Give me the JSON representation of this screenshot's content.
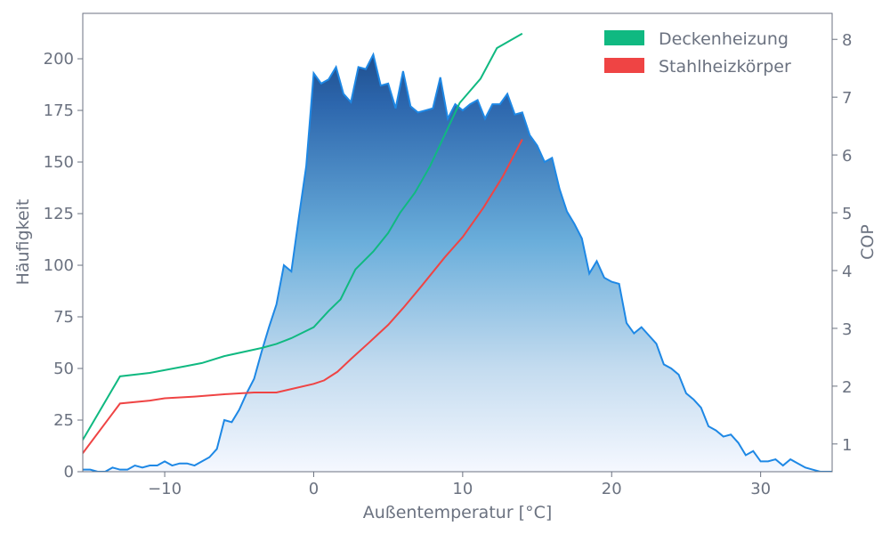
{
  "chart_data": {
    "type": "area",
    "title": "",
    "xlabel": "Außentemperatur [°C]",
    "ylabel": "Häufigkeit",
    "y2label": "COP",
    "xlim": [
      -15.5,
      34.8
    ],
    "ylim": [
      0,
      222
    ],
    "y2lim": [
      0.52,
      8.45
    ],
    "x_ticks": [
      -10,
      0,
      10,
      20,
      30
    ],
    "x_tick_labels": [
      "−10",
      "0",
      "10",
      "20",
      "30"
    ],
    "y_ticks": [
      0,
      25,
      50,
      75,
      100,
      125,
      150,
      175,
      200
    ],
    "y_tick_labels": [
      "0",
      "25",
      "50",
      "75",
      "100",
      "125",
      "150",
      "175",
      "200"
    ],
    "y2_ticks": [
      1,
      2,
      3,
      4,
      5,
      6,
      7,
      8
    ],
    "y2_tick_labels": [
      "1",
      "2",
      "3",
      "4",
      "5",
      "6",
      "7",
      "8"
    ],
    "grid": false,
    "legend_position": "top-right",
    "frequency": {
      "color_line": "#1e88e5",
      "color_top": "#1f4e8c",
      "color_bottom": "#f5f8ff",
      "x": [
        -15.5,
        -15,
        -14.5,
        -14,
        -13.5,
        -13,
        -12.5,
        -12,
        -11.5,
        -11,
        -10.5,
        -10,
        -9.5,
        -9,
        -8.5,
        -8,
        -7.5,
        -7,
        -6.5,
        -6,
        -5.5,
        -5,
        -4.5,
        -4,
        -3.5,
        -3,
        -2.5,
        -2,
        -1.5,
        -1,
        -0.5,
        0,
        0.5,
        1,
        1.5,
        2,
        2.5,
        3,
        3.5,
        4,
        4.5,
        5,
        5.5,
        6,
        6.5,
        7,
        7.5,
        8,
        8.5,
        9,
        9.5,
        10,
        10.5,
        11,
        11.5,
        12,
        12.5,
        13,
        13.5,
        14,
        14.5,
        15,
        15.5,
        16,
        16.5,
        17,
        17.5,
        18,
        18.5,
        19,
        19.5,
        20,
        20.5,
        21,
        21.5,
        22,
        22.5,
        23,
        23.5,
        24,
        24.5,
        25,
        25.5,
        26,
        26.5,
        27,
        27.5,
        28,
        28.5,
        29,
        29.5,
        30,
        30.5,
        31,
        31.5,
        32,
        32.5,
        33,
        33.5,
        34,
        34.5,
        34.8
      ],
      "values": [
        1,
        1,
        0,
        0,
        2,
        1,
        1,
        3,
        2,
        3,
        3,
        5,
        3,
        4,
        4,
        3,
        5,
        7,
        11,
        25,
        24,
        30,
        38,
        45,
        58,
        70,
        81,
        100,
        97,
        123,
        148,
        193,
        188,
        190,
        196,
        183,
        179,
        196,
        195,
        202,
        187,
        188,
        176,
        194,
        177,
        174,
        175,
        176,
        191,
        171,
        178,
        175,
        178,
        180,
        171,
        178,
        178,
        183,
        173,
        174,
        163,
        158,
        150,
        152,
        137,
        126,
        120,
        113,
        96,
        102,
        94,
        92,
        91,
        72,
        67,
        70,
        66,
        62,
        52,
        50,
        47,
        38,
        35,
        31,
        22,
        20,
        17,
        18,
        14,
        8,
        10,
        5,
        5,
        6,
        3,
        6,
        4,
        2,
        1,
        0,
        0,
        0
      ]
    },
    "series": [
      {
        "name": "Deckenheizung",
        "color": "#10b981",
        "x": [
          -15.5,
          -13,
          -11,
          -8.5,
          -7.5,
          -6,
          -3.5,
          -2.5,
          -1.5,
          0,
          1,
          1.8,
          2.8,
          4,
          5,
          5.8,
          6.8,
          7.8,
          8.8,
          9.8,
          11.2,
          12.3,
          14
        ],
        "values": [
          1.07,
          2.17,
          2.23,
          2.35,
          2.4,
          2.52,
          2.66,
          2.73,
          2.83,
          3.02,
          3.3,
          3.5,
          4.02,
          4.33,
          4.65,
          5.0,
          5.35,
          5.8,
          6.35,
          6.9,
          7.32,
          7.85,
          8.1
        ]
      },
      {
        "name": "Stahlheizkörper",
        "color": "#ef4444",
        "x": [
          -15.5,
          -13,
          -11,
          -10,
          -8,
          -6,
          -4,
          -2.5,
          -1.5,
          0,
          0.7,
          1.6,
          2.5,
          3.7,
          5,
          6,
          7.2,
          8.8,
          10,
          11.4,
          12.7,
          14
        ],
        "values": [
          0.84,
          1.7,
          1.75,
          1.79,
          1.82,
          1.86,
          1.89,
          1.89,
          1.95,
          2.04,
          2.1,
          2.25,
          2.47,
          2.75,
          3.06,
          3.35,
          3.72,
          4.23,
          4.58,
          5.09,
          5.63,
          6.27
        ]
      }
    ]
  }
}
